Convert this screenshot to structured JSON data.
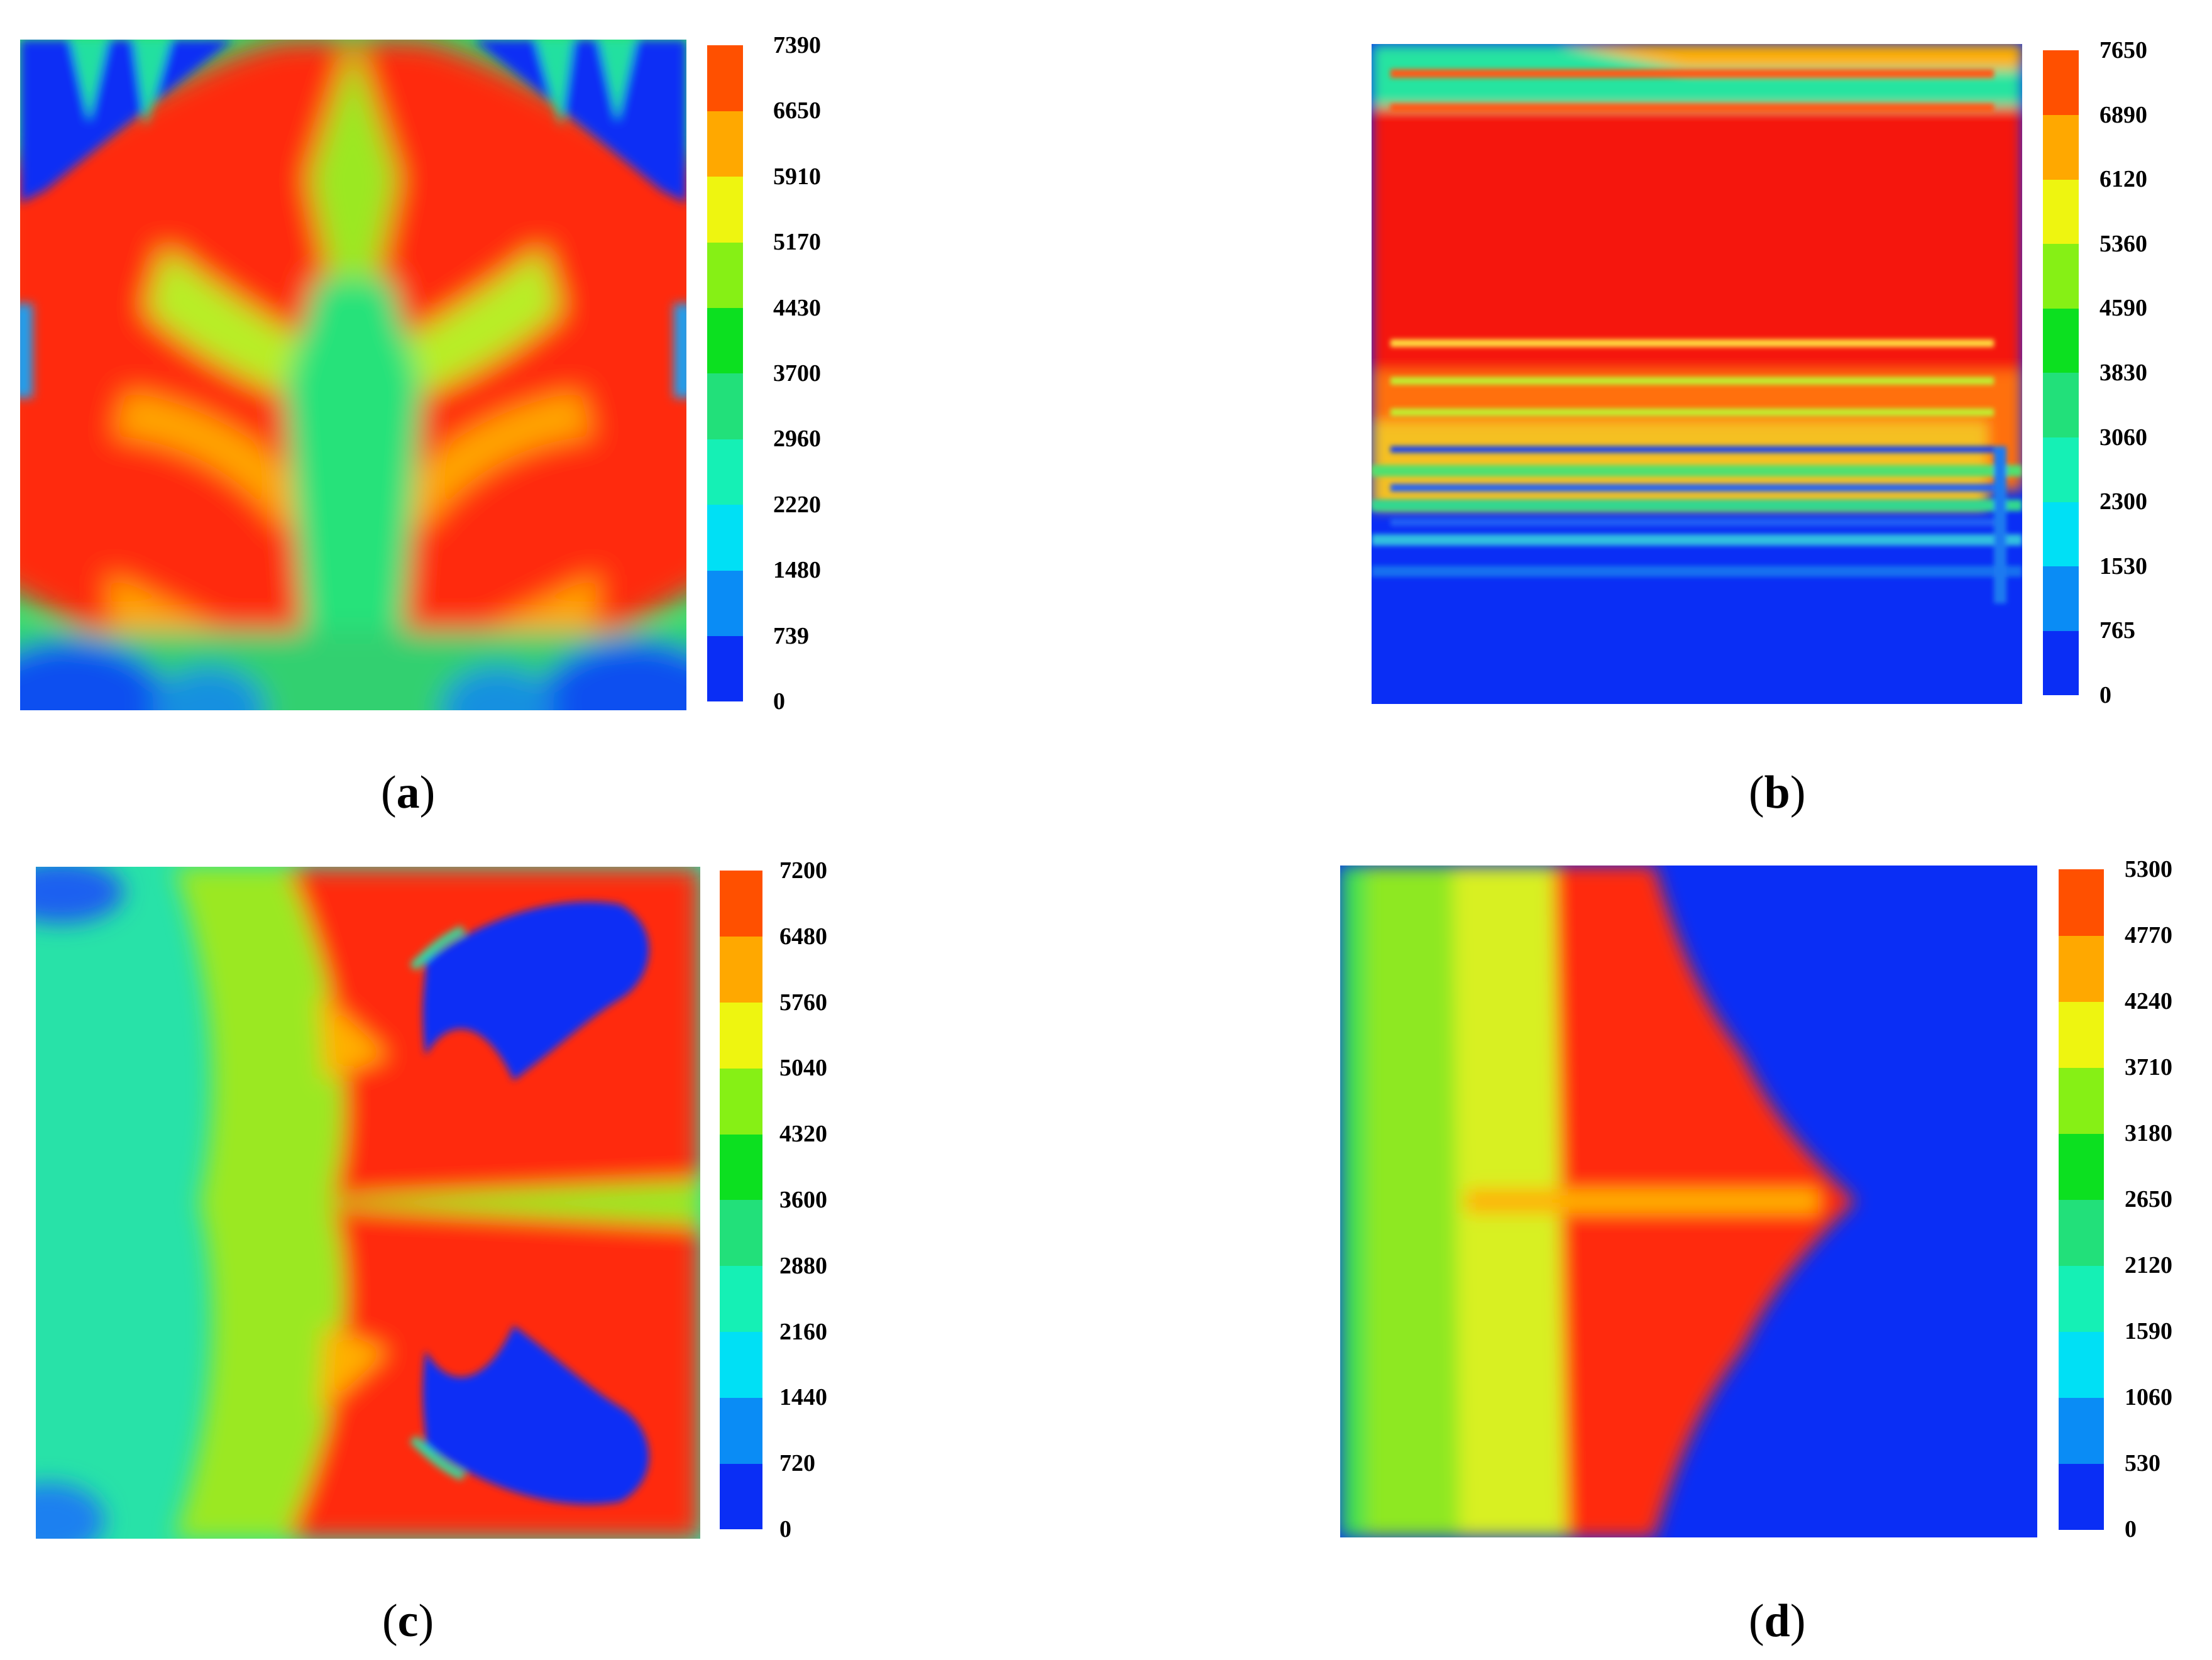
{
  "figure": {
    "panels": [
      {
        "id": "a",
        "caption_letter": "a",
        "colorbar": {
          "colors": [
            "#0a2ef5",
            "#0a8cf5",
            "#00e0f5",
            "#15f0b5",
            "#22e07a",
            "#0ce020",
            "#86f015",
            "#eef510",
            "#ffa800",
            "#ff5000"
          ],
          "ticks": [
            "7390",
            "6650",
            "5910",
            "5170",
            "4430",
            "3700",
            "2960",
            "2220",
            "1480",
            "739",
            "0"
          ]
        }
      },
      {
        "id": "b",
        "caption_letter": "b",
        "colorbar": {
          "colors": [
            "#0a2ef5",
            "#0a8cf5",
            "#00e0f5",
            "#15f0b5",
            "#22e07a",
            "#0ce020",
            "#86f015",
            "#eef510",
            "#ffa800",
            "#ff5000"
          ],
          "ticks": [
            "7650",
            "6890",
            "6120",
            "5360",
            "4590",
            "3830",
            "3060",
            "2300",
            "1530",
            "765",
            "0"
          ]
        }
      },
      {
        "id": "c",
        "caption_letter": "c",
        "colorbar": {
          "colors": [
            "#0a2ef5",
            "#0a8cf5",
            "#00e0f5",
            "#15f0b5",
            "#22e07a",
            "#0ce020",
            "#86f015",
            "#eef510",
            "#ffa800",
            "#ff5000"
          ],
          "ticks": [
            "7200",
            "6480",
            "5760",
            "5040",
            "4320",
            "3600",
            "2880",
            "2160",
            "1440",
            "720",
            "0"
          ]
        }
      },
      {
        "id": "d",
        "caption_letter": "d",
        "colorbar": {
          "colors": [
            "#0a2ef5",
            "#0a8cf5",
            "#00e0f5",
            "#15f0b5",
            "#22e07a",
            "#0ce020",
            "#86f015",
            "#eef510",
            "#ffa800",
            "#ff5000"
          ],
          "ticks": [
            "5300",
            "4770",
            "4240",
            "3710",
            "3180",
            "2650",
            "2120",
            "1590",
            "1060",
            "530",
            "0"
          ]
        }
      }
    ]
  }
}
